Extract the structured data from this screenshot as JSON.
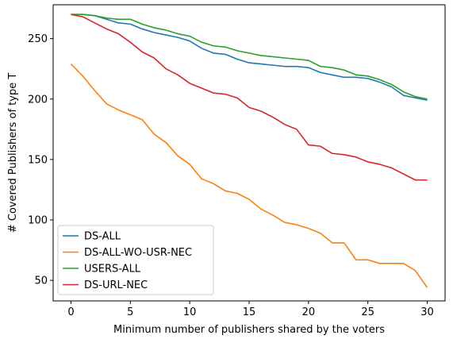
{
  "chart_data": {
    "type": "line",
    "title": "",
    "xlabel": "Minimum number of publishers shared by the voters",
    "ylabel": "# Covered Publishers of type T",
    "xlim": [
      -1.5,
      31.5
    ],
    "ylim": [
      33,
      278
    ],
    "xticks": [
      0,
      5,
      10,
      15,
      20,
      25,
      30
    ],
    "yticks": [
      50,
      100,
      150,
      200,
      250
    ],
    "grid": false,
    "legend_position": "lower-left",
    "x": [
      0,
      1,
      2,
      3,
      4,
      5,
      6,
      7,
      8,
      9,
      10,
      11,
      12,
      13,
      14,
      15,
      16,
      17,
      18,
      19,
      20,
      21,
      22,
      23,
      24,
      25,
      26,
      27,
      28,
      29,
      30
    ],
    "series": [
      {
        "name": "DS-ALL",
        "color": "#1f77b4",
        "values": [
          270,
          270,
          269,
          266,
          263,
          262,
          258,
          255,
          253,
          251,
          248,
          242,
          238,
          237,
          233,
          230,
          229,
          228,
          227,
          227,
          226,
          222,
          220,
          218,
          218,
          217,
          214,
          210,
          203,
          201,
          199
        ]
      },
      {
        "name": "DS-ALL-WO-USR-NEC",
        "color": "#ff7f0e",
        "values": [
          229,
          219,
          207,
          196,
          191,
          187,
          183,
          171,
          164,
          153,
          146,
          134,
          130,
          124,
          122,
          117,
          109,
          104,
          98,
          96,
          93,
          89,
          81,
          81,
          67,
          67,
          64,
          64,
          64,
          58,
          44
        ]
      },
      {
        "name": "USERS-ALL",
        "color": "#2ca02c",
        "values": [
          270,
          270,
          269,
          267,
          266,
          266,
          262,
          259,
          257,
          254,
          252,
          247,
          244,
          243,
          240,
          238,
          236,
          235,
          234,
          233,
          232,
          227,
          226,
          224,
          220,
          219,
          216,
          212,
          206,
          202,
          200
        ]
      },
      {
        "name": "DS-URL-NEC",
        "color": "#d62728",
        "values": [
          270,
          268,
          263,
          258,
          254,
          247,
          239,
          234,
          225,
          220,
          213,
          209,
          205,
          204,
          201,
          193,
          190,
          185,
          179,
          175,
          162,
          161,
          155,
          154,
          152,
          148,
          146,
          143,
          138,
          133,
          133
        ]
      }
    ]
  }
}
